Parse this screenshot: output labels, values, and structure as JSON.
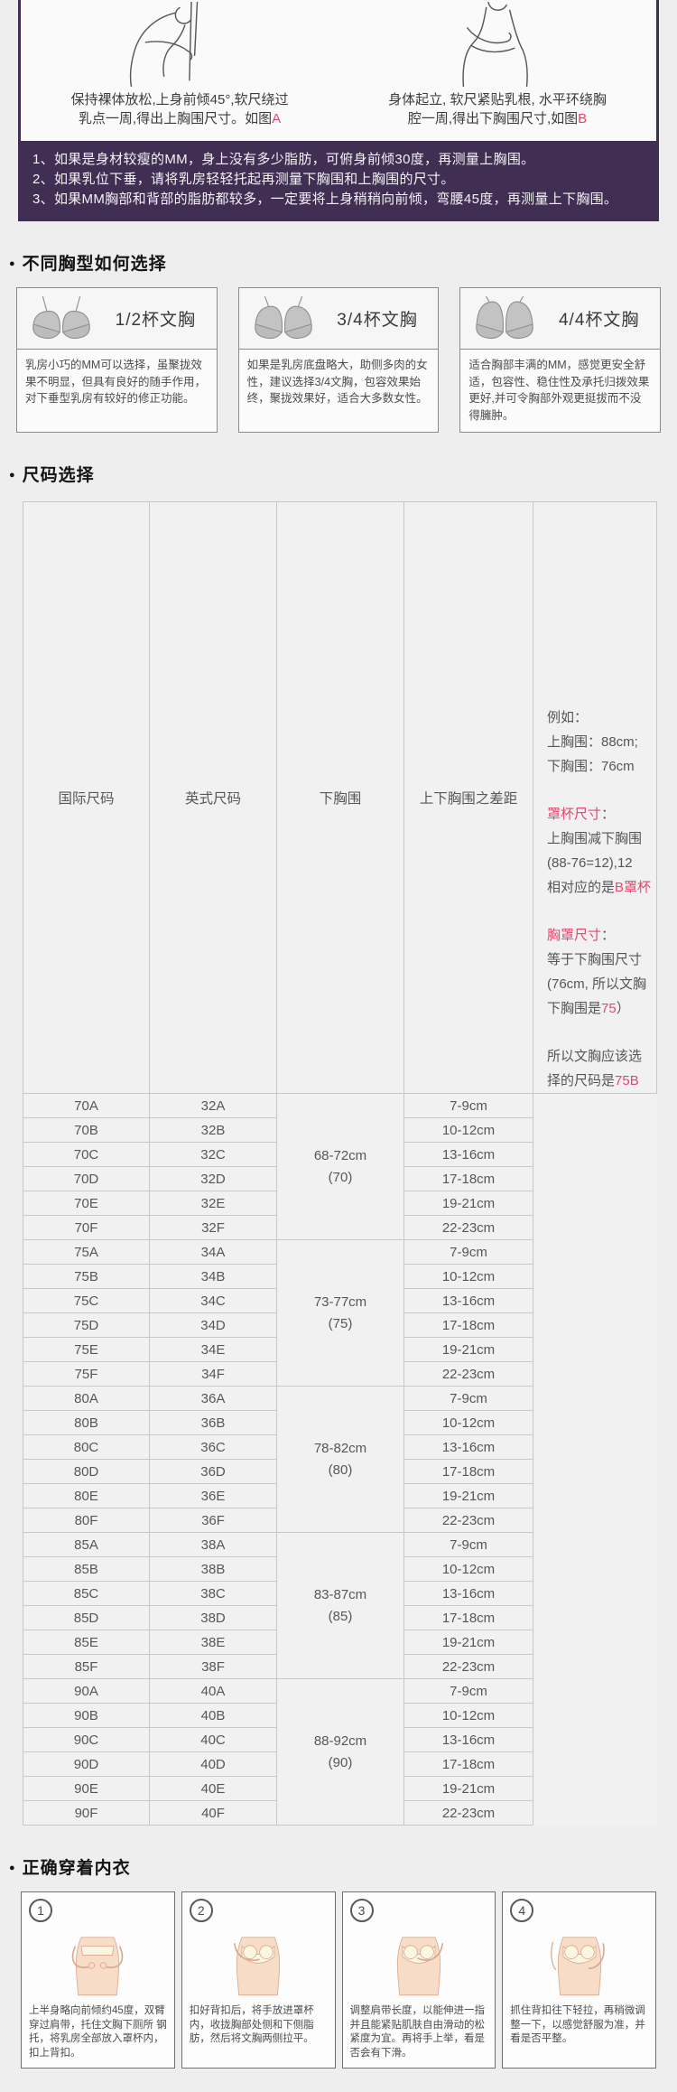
{
  "colors": {
    "accent_red": "#e2486d",
    "notice_purple": "#402f52",
    "page_bg": "#eeeeef",
    "table_border": "#c7c7c9"
  },
  "measure": {
    "figures": [
      {
        "icon": "measure-upper-bust-figure",
        "line1": "保持裸体放松,上身前倾45°,软尺绕过",
        "line2": "乳点一周,得出上胸围尺寸。如图",
        "ref": "A"
      },
      {
        "icon": "measure-under-bust-figure",
        "line1": "身体起立, 软尺紧贴乳根, 水平环绕胸",
        "line2": "腔一周,得出下胸围尺寸,如图",
        "ref": "B"
      }
    ]
  },
  "notice": {
    "lines": [
      "1、如果是身材较瘦的MM，身上没有多少脂肪，可俯身前倾30度，再测量上胸围。",
      "2、如果乳位下垂，请将乳房轻轻托起再测量下胸围和上胸围的尺寸。",
      "3、如果MM胸部和背部的脂肪都较多，一定要将上身稍稍向前倾，弯腰45度，再测量上下胸围。"
    ]
  },
  "sections": {
    "cup_title": "不同胸型如何选择",
    "size_title": "尺码选择",
    "wear_title": "正确穿着内衣"
  },
  "cup_cards": [
    {
      "label": "1/2杯文胸",
      "desc": "乳房小巧的MM可以选择，虽聚拢效果不明显，但具有良好的随手作用，对下垂型乳房有较好的修正功能。",
      "icon": "half-cup-bra-icon"
    },
    {
      "label": "3/4杯文胸",
      "desc": "如果是乳房底盘略大，助侧多肉的女性，建议选择3/4文胸，包容效果始终，聚拢效果好，适合大多数女性。",
      "icon": "three-quarter-cup-bra-icon"
    },
    {
      "label": "4/4杯文胸",
      "desc": "适合胸部丰满的MM，感觉更安全舒适，包容性、稳住性及承托归拨效果更好,并可令胸部外观更挺拔而不没得臃肿。",
      "icon": "full-cup-bra-icon"
    }
  ],
  "size_table": {
    "headers": [
      "国际尺码",
      "英式尺码",
      "下胸围",
      "上下胸围之差距"
    ],
    "groups": [
      {
        "band_line1": "68-72cm",
        "band_line2": "(70)",
        "rows": [
          {
            "intl": "70A",
            "uk": "32A",
            "diff": "7-9cm"
          },
          {
            "intl": "70B",
            "uk": "32B",
            "diff": "10-12cm"
          },
          {
            "intl": "70C",
            "uk": "32C",
            "diff": "13-16cm"
          },
          {
            "intl": "70D",
            "uk": "32D",
            "diff": "17-18cm"
          },
          {
            "intl": "70E",
            "uk": "32E",
            "diff": "19-21cm"
          },
          {
            "intl": "70F",
            "uk": "32F",
            "diff": "22-23cm"
          }
        ]
      },
      {
        "band_line1": "73-77cm",
        "band_line2": "(75)",
        "rows": [
          {
            "intl": "75A",
            "uk": "34A",
            "diff": "7-9cm"
          },
          {
            "intl": "75B",
            "uk": "34B",
            "diff": "10-12cm"
          },
          {
            "intl": "75C",
            "uk": "34C",
            "diff": "13-16cm"
          },
          {
            "intl": "75D",
            "uk": "34D",
            "diff": "17-18cm"
          },
          {
            "intl": "75E",
            "uk": "34E",
            "diff": "19-21cm"
          },
          {
            "intl": "75F",
            "uk": "34F",
            "diff": "22-23cm"
          }
        ]
      },
      {
        "band_line1": "78-82cm",
        "band_line2": "(80)",
        "rows": [
          {
            "intl": "80A",
            "uk": "36A",
            "diff": "7-9cm"
          },
          {
            "intl": "80B",
            "uk": "36B",
            "diff": "10-12cm"
          },
          {
            "intl": "80C",
            "uk": "36C",
            "diff": "13-16cm"
          },
          {
            "intl": "80D",
            "uk": "36D",
            "diff": "17-18cm"
          },
          {
            "intl": "80E",
            "uk": "36E",
            "diff": "19-21cm"
          },
          {
            "intl": "80F",
            "uk": "36F",
            "diff": "22-23cm"
          }
        ]
      },
      {
        "band_line1": "83-87cm",
        "band_line2": "(85)",
        "rows": [
          {
            "intl": "85A",
            "uk": "38A",
            "diff": "7-9cm"
          },
          {
            "intl": "85B",
            "uk": "38B",
            "diff": "10-12cm"
          },
          {
            "intl": "85C",
            "uk": "38C",
            "diff": "13-16cm"
          },
          {
            "intl": "85D",
            "uk": "38D",
            "diff": "17-18cm"
          },
          {
            "intl": "85E",
            "uk": "38E",
            "diff": "19-21cm"
          },
          {
            "intl": "85F",
            "uk": "38F",
            "diff": "22-23cm"
          }
        ]
      },
      {
        "band_line1": "88-92cm",
        "band_line2": "(90)",
        "rows": [
          {
            "intl": "90A",
            "uk": "40A",
            "diff": "7-9cm"
          },
          {
            "intl": "90B",
            "uk": "40B",
            "diff": "10-12cm"
          },
          {
            "intl": "90C",
            "uk": "40C",
            "diff": "13-16cm"
          },
          {
            "intl": "90D",
            "uk": "40D",
            "diff": "17-18cm"
          },
          {
            "intl": "90E",
            "uk": "40E",
            "diff": "19-21cm"
          },
          {
            "intl": "90F",
            "uk": "40F",
            "diff": "22-23cm"
          }
        ]
      }
    ],
    "note_lines": [
      {
        "gap": false,
        "parts": [
          {
            "t": "例如："
          }
        ]
      },
      {
        "gap": false,
        "parts": [
          {
            "t": "上胸围：88cm;"
          }
        ]
      },
      {
        "gap": false,
        "parts": [
          {
            "t": "下胸围：76cm"
          }
        ]
      },
      {
        "gap": true,
        "parts": [
          {
            "t": "罩杯尺寸",
            "red": true
          },
          {
            "t": "："
          }
        ]
      },
      {
        "gap": false,
        "parts": [
          {
            "t": "上胸围减下胸围"
          }
        ]
      },
      {
        "gap": false,
        "parts": [
          {
            "t": "(88-76=12),12"
          }
        ]
      },
      {
        "gap": false,
        "parts": [
          {
            "t": "相对应的是"
          },
          {
            "t": "B罩杯",
            "red": true
          }
        ]
      },
      {
        "gap": true,
        "parts": [
          {
            "t": "胸罩尺寸",
            "red": true
          },
          {
            "t": "："
          }
        ]
      },
      {
        "gap": false,
        "parts": [
          {
            "t": "等于下胸围尺寸"
          }
        ]
      },
      {
        "gap": false,
        "parts": [
          {
            "t": "(76cm, 所以文胸"
          }
        ]
      },
      {
        "gap": false,
        "parts": [
          {
            "t": "下胸围是"
          },
          {
            "t": "75",
            "red": true
          },
          {
            "t": "）"
          }
        ]
      },
      {
        "gap": true,
        "parts": [
          {
            "t": "所以文胸应该选"
          }
        ]
      },
      {
        "gap": false,
        "parts": [
          {
            "t": "择的尺码是"
          },
          {
            "t": "75B",
            "red": true
          }
        ]
      }
    ]
  },
  "wear_steps": [
    {
      "num": "1",
      "icon": "wear-step1-figure",
      "text": "上半身略向前倾约45度，双臂穿过肩带，托住文胸下厕所 钢托，将乳房全部放入罩杯内，扣上背扣。"
    },
    {
      "num": "2",
      "icon": "wear-step2-figure",
      "text": "扣好背扣后，将手放进罩杯内，收拢胸部处侧和下侧脂肪，然后将文胸两侧拉平。"
    },
    {
      "num": "3",
      "icon": "wear-step3-figure",
      "text": "调整肩带长度，以能伸进一指并且能紧贴肌肤自由滑动的松紧度为宜。再将手上举，看是否会有下滑。"
    },
    {
      "num": "4",
      "icon": "wear-step4-figure",
      "text": "抓住背扣往下轻拉，再稍微调整一下，以感觉舒服为准，并看是否平整。"
    }
  ]
}
